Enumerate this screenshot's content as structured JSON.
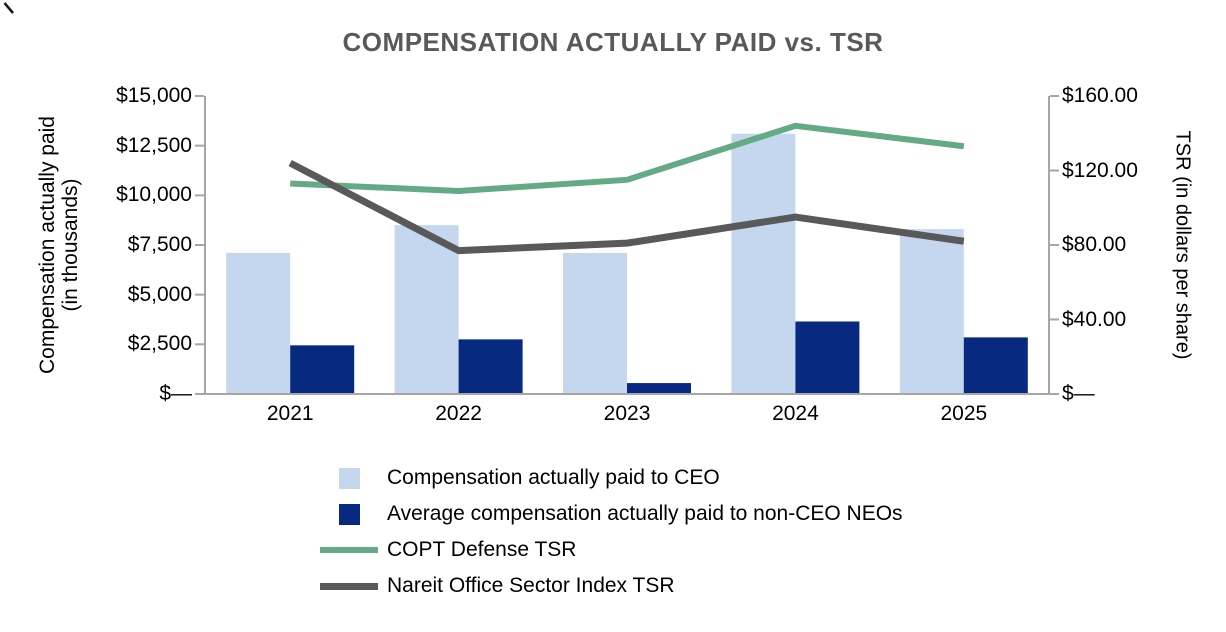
{
  "chart_data": {
    "type": "combo-bar-line",
    "title": "COMPENSATION ACTUALLY PAID vs. TSR",
    "categories": [
      "2021",
      "2022",
      "2023",
      "2024",
      "2025"
    ],
    "left_axis": {
      "label_line1": "Compensation actually paid",
      "label_line2": "(in thousands)",
      "tick_labels": [
        "$15,000",
        "$12,500",
        "$10,000",
        "$7,500",
        "$5,000",
        "$2,500",
        "$—"
      ],
      "lim": [
        0,
        15000
      ]
    },
    "right_axis": {
      "label": "TSR (in dollars per share)",
      "tick_labels": [
        "$160.00",
        "$120.00",
        "$80.00",
        "$40.00",
        "$—"
      ],
      "lim": [
        0,
        160
      ]
    },
    "grid": false,
    "legend_position": "bottom-left",
    "series": [
      {
        "key": "ceo-bar",
        "name": "Compensation actually paid to CEO",
        "type": "bar",
        "axis": "left",
        "color": "#c5d7ee",
        "values": [
          7100,
          8500,
          7100,
          13100,
          8300
        ]
      },
      {
        "key": "neo-bar",
        "name": "Average compensation actually paid to non-CEO NEOs",
        "type": "bar",
        "axis": "left",
        "color": "#07297f",
        "values": [
          2450,
          2750,
          550,
          3650,
          2850
        ]
      },
      {
        "key": "copt-tsr-line",
        "name": "COPT Defense TSR",
        "type": "line",
        "axis": "right",
        "color": "#64aa84",
        "values": [
          113,
          109,
          115,
          144,
          133
        ]
      },
      {
        "key": "nareit-tsr-line",
        "name": "Nareit Office Sector Index TSR",
        "type": "line",
        "axis": "right",
        "color": "#595959",
        "values": [
          124,
          77,
          81,
          95,
          82
        ]
      }
    ]
  },
  "colors": {
    "axis": "#a6a6a6",
    "title_text": "#595959",
    "text": "#000000",
    "background": "#ffffff"
  }
}
